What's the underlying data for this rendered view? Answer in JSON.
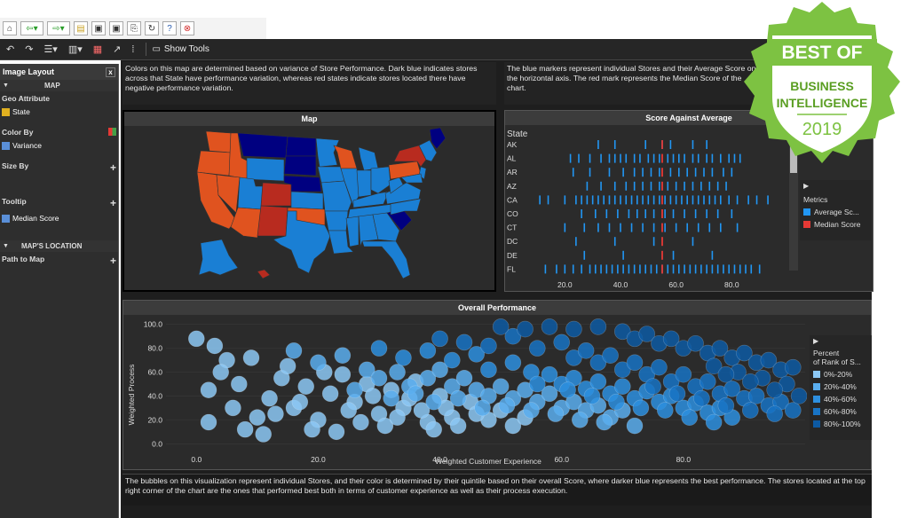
{
  "sidebar": {
    "title": "Image Layout",
    "close": "x",
    "sections": [
      {
        "label": "MAP"
      },
      {
        "label": "MAP'S LOCATION"
      }
    ],
    "geo_attribute": "Geo Attribute",
    "geo_value": "State",
    "color_by": "Color By",
    "color_value": "Variance",
    "size_by": "Size By",
    "tooltip": "Tooltip",
    "tooltip_value": "Median Score",
    "path_to_map": "Path to Map",
    "plus": "+"
  },
  "toolbar": {
    "show_tools": "Show Tools"
  },
  "text_top_left": "Colors on this map are determined based on variance of Store Performance. Dark blue indicates stores across that State have performance variation, whereas red states indicate stores located there have negative performance variation.",
  "text_top_right": "The blue markers represent individual Stores and their Average Score on the horizontal axis. The red mark represents the Median Score of the chart.",
  "text_bottom": "The bubbles on this visualization represent individual Stores, and their color is determined by their quintile based on their overall Score, where darker blue represents the best performance. The stores located at the top right corner of the chart are the ones that performed best both in terms of customer experience as well as their process execution.",
  "map_panel": {
    "title": "Map"
  },
  "score_panel": {
    "title": "Score Against Average",
    "col_header": "State"
  },
  "perf_panel": {
    "title": "Overall Performance"
  },
  "legend_score": {
    "toggle": "▶",
    "title": "Metrics",
    "items": [
      "Average Sc...",
      "Median Score"
    ]
  },
  "legend_perf": {
    "toggle": "▶",
    "title_line1": "Percent",
    "title_line2": "of Rank of S...",
    "items": [
      "0%-20%",
      "20%-40%",
      "40%-60%",
      "60%-80%",
      "80%-100%"
    ]
  },
  "badge": {
    "line1": "BEST OF",
    "line2": "BUSINESS",
    "line3": "INTELLIGENCE",
    "line4": "2019"
  },
  "colors": {
    "dark_blue": "#000080",
    "mid_blue": "#1a7fd4",
    "red_orange": "#e0531f",
    "red": "#b82b1f",
    "accent_blue": "#2196f3",
    "median_red": "#e53935",
    "badge_green": "#7dc242"
  },
  "chart_data": [
    {
      "type": "scatter",
      "title": "Score Against Average",
      "categories": [
        "AK",
        "AL",
        "AR",
        "AZ",
        "CA",
        "CO",
        "CT",
        "DC",
        "DE",
        "FL"
      ],
      "xlim": [
        10,
        100
      ],
      "xticks": [
        "20.0",
        "40.0",
        "60.0",
        "80.0"
      ],
      "median": 55,
      "series": [
        {
          "name": "Average Sc...",
          "values_by_category": {
            "AK": [
              32,
              38,
              49,
              55,
              58,
              66,
              71
            ],
            "AL": [
              22,
              25,
              29,
              33,
              36,
              38,
              40,
              42,
              45,
              47,
              50,
              52,
              54,
              57,
              59,
              61,
              63,
              66,
              68,
              71,
              73,
              76,
              79,
              81,
              83
            ],
            "AR": [
              23,
              29,
              36,
              41,
              45,
              48,
              51,
              54,
              58,
              61,
              64,
              67,
              70,
              73,
              77,
              80
            ],
            "AZ": [
              28,
              33,
              38,
              42,
              45,
              48,
              51,
              54,
              57,
              60,
              63,
              66,
              69,
              72,
              75,
              78
            ],
            "CA": [
              11,
              14,
              20,
              24,
              26,
              28,
              30,
              32,
              34,
              36,
              38,
              40,
              42,
              44,
              46,
              48,
              50,
              52,
              54,
              56,
              58,
              60,
              62,
              64,
              66,
              68,
              70,
              72,
              74,
              76,
              79,
              82,
              86,
              89,
              93
            ],
            "CO": [
              26,
              31,
              35,
              39,
              43,
              46,
              49,
              52,
              56,
              59,
              63,
              67,
              71,
              75,
              80
            ],
            "CT": [
              20,
              27,
              32,
              36,
              40,
              44,
              48,
              52,
              56,
              60,
              64,
              68,
              72,
              76,
              82
            ],
            "DC": [
              24,
              38,
              52,
              66
            ],
            "DE": [
              27,
              41,
              59,
              73
            ],
            "FL": [
              13,
              17,
              20,
              23,
              26,
              29,
              31,
              33,
              35,
              37,
              39,
              41,
              43,
              45,
              47,
              49,
              51,
              53,
              55,
              57,
              59,
              61,
              63,
              65,
              67,
              69,
              71,
              73,
              75,
              77,
              79,
              81,
              83,
              85,
              87,
              90
            ]
          }
        },
        {
          "name": "Median Score",
          "value": 55
        }
      ]
    },
    {
      "type": "scatter",
      "title": "Overall Performance",
      "xlabel": "Weighted Customer Experience",
      "ylabel": "Weighted Process",
      "xlim": [
        -5,
        100
      ],
      "ylim": [
        -5,
        105
      ],
      "xticks": [
        "0.0",
        "20.0",
        "40.0",
        "60.0",
        "80.0"
      ],
      "yticks": [
        "0.0",
        "20.0",
        "40.0",
        "60.0",
        "80.0",
        "100.0"
      ],
      "series": [
        {
          "name": "0%-20%",
          "points": [
            [
              0,
              88
            ],
            [
              3,
              82
            ],
            [
              5,
              70
            ],
            [
              9,
              72
            ],
            [
              4,
              60
            ],
            [
              2,
              45
            ],
            [
              7,
              50
            ],
            [
              6,
              30
            ],
            [
              10,
              22
            ],
            [
              2,
              18
            ],
            [
              12,
              38
            ],
            [
              14,
              55
            ],
            [
              16,
              30
            ],
            [
              18,
              48
            ],
            [
              20,
              20
            ],
            [
              22,
              42
            ],
            [
              8,
              12
            ],
            [
              11,
              8
            ],
            [
              15,
              65
            ],
            [
              24,
              58
            ],
            [
              26,
              35
            ],
            [
              28,
              50
            ],
            [
              30,
              25
            ],
            [
              32,
              45
            ],
            [
              34,
              30
            ],
            [
              36,
              52
            ],
            [
              38,
              18
            ],
            [
              40,
              40
            ],
            [
              42,
              22
            ],
            [
              45,
              35
            ],
            [
              48,
              20
            ],
            [
              50,
              28
            ],
            [
              13,
              25
            ],
            [
              19,
              12
            ],
            [
              17,
              35
            ],
            [
              21,
              60
            ],
            [
              25,
              28
            ],
            [
              29,
              40
            ],
            [
              31,
              15
            ],
            [
              33,
              22
            ],
            [
              35,
              38
            ],
            [
              37,
              28
            ],
            [
              39,
              12
            ],
            [
              41,
              30
            ],
            [
              43,
              15
            ],
            [
              46,
              25
            ],
            [
              52,
              15
            ],
            [
              54,
              22
            ],
            [
              23,
              10
            ],
            [
              27,
              18
            ]
          ]
        },
        {
          "name": "20%-40%",
          "points": [
            [
              16,
              78
            ],
            [
              20,
              68
            ],
            [
              24,
              74
            ],
            [
              28,
              62
            ],
            [
              30,
              55
            ],
            [
              33,
              60
            ],
            [
              35,
              48
            ],
            [
              38,
              55
            ],
            [
              40,
              62
            ],
            [
              42,
              48
            ],
            [
              44,
              55
            ],
            [
              46,
              45
            ],
            [
              48,
              40
            ],
            [
              50,
              48
            ],
            [
              52,
              38
            ],
            [
              54,
              45
            ],
            [
              56,
              35
            ],
            [
              58,
              42
            ],
            [
              60,
              30
            ],
            [
              62,
              35
            ],
            [
              64,
              28
            ],
            [
              66,
              32
            ],
            [
              68,
              22
            ],
            [
              70,
              28
            ],
            [
              26,
              45
            ],
            [
              32,
              38
            ],
            [
              36,
              42
            ],
            [
              39,
              35
            ],
            [
              43,
              38
            ],
            [
              47,
              30
            ],
            [
              51,
              32
            ],
            [
              55,
              28
            ],
            [
              59,
              25
            ],
            [
              63,
              20
            ],
            [
              67,
              18
            ],
            [
              72,
              15
            ]
          ]
        },
        {
          "name": "40%-60%",
          "points": [
            [
              30,
              80
            ],
            [
              34,
              72
            ],
            [
              38,
              78
            ],
            [
              42,
              70
            ],
            [
              46,
              75
            ],
            [
              48,
              62
            ],
            [
              52,
              68
            ],
            [
              55,
              60
            ],
            [
              58,
              58
            ],
            [
              60,
              50
            ],
            [
              62,
              55
            ],
            [
              64,
              46
            ],
            [
              66,
              52
            ],
            [
              68,
              42
            ],
            [
              70,
              48
            ],
            [
              72,
              38
            ],
            [
              74,
              44
            ],
            [
              76,
              35
            ],
            [
              78,
              40
            ],
            [
              80,
              30
            ],
            [
              82,
              34
            ],
            [
              84,
              26
            ],
            [
              86,
              30
            ],
            [
              88,
              22
            ],
            [
              56,
              50
            ],
            [
              61,
              45
            ],
            [
              65,
              40
            ],
            [
              69,
              35
            ],
            [
              73,
              30
            ],
            [
              77,
              28
            ],
            [
              81,
              22
            ],
            [
              85,
              18
            ]
          ]
        },
        {
          "name": "60%-80%",
          "points": [
            [
              40,
              88
            ],
            [
              44,
              85
            ],
            [
              48,
              82
            ],
            [
              52,
              90
            ],
            [
              56,
              80
            ],
            [
              60,
              85
            ],
            [
              62,
              72
            ],
            [
              64,
              78
            ],
            [
              66,
              68
            ],
            [
              68,
              74
            ],
            [
              70,
              62
            ],
            [
              72,
              68
            ],
            [
              74,
              58
            ],
            [
              76,
              64
            ],
            [
              78,
              52
            ],
            [
              80,
              58
            ],
            [
              82,
              48
            ],
            [
              84,
              52
            ],
            [
              86,
              42
            ],
            [
              88,
              46
            ],
            [
              90,
              38
            ],
            [
              92,
              40
            ],
            [
              94,
              32
            ],
            [
              96,
              35
            ],
            [
              98,
              28
            ],
            [
              75,
              48
            ],
            [
              79,
              42
            ],
            [
              83,
              38
            ],
            [
              87,
              32
            ],
            [
              91,
              28
            ],
            [
              95,
              25
            ]
          ]
        },
        {
          "name": "80%-100%",
          "points": [
            [
              50,
              98
            ],
            [
              54,
              96
            ],
            [
              58,
              98
            ],
            [
              62,
              96
            ],
            [
              66,
              98
            ],
            [
              70,
              94
            ],
            [
              72,
              88
            ],
            [
              74,
              92
            ],
            [
              76,
              84
            ],
            [
              78,
              88
            ],
            [
              80,
              80
            ],
            [
              82,
              84
            ],
            [
              84,
              76
            ],
            [
              86,
              80
            ],
            [
              88,
              72
            ],
            [
              90,
              76
            ],
            [
              92,
              68
            ],
            [
              94,
              70
            ],
            [
              96,
              62
            ],
            [
              98,
              64
            ],
            [
              85,
              65
            ],
            [
              89,
              60
            ],
            [
              93,
              55
            ],
            [
              97,
              50
            ],
            [
              95,
              45
            ],
            [
              99,
              40
            ],
            [
              91,
              52
            ],
            [
              87,
              58
            ]
          ]
        }
      ]
    }
  ]
}
